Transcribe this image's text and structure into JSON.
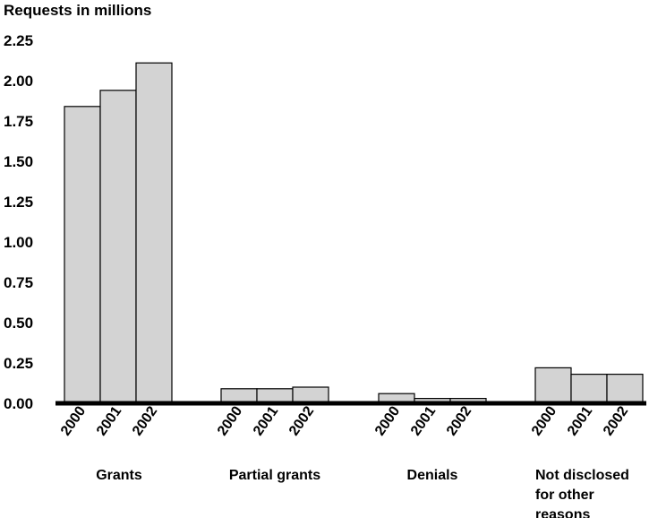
{
  "chart_data": {
    "type": "bar",
    "ylabel": "Requests in millions",
    "ylim": [
      0,
      2.25
    ],
    "yticks": [
      "0.00",
      "0.25",
      "0.50",
      "0.75",
      "1.00",
      "1.25",
      "1.50",
      "1.75",
      "2.00",
      "2.25"
    ],
    "grid": false,
    "legend": "none",
    "groups": [
      {
        "name": "Grants",
        "x": [
          "2000",
          "2001",
          "2002"
        ],
        "values": [
          1.84,
          1.94,
          2.11
        ]
      },
      {
        "name": "Partial grants",
        "x": [
          "2000",
          "2001",
          "2002"
        ],
        "values": [
          0.09,
          0.09,
          0.1
        ]
      },
      {
        "name": "Denials",
        "x": [
          "2000",
          "2001",
          "2002"
        ],
        "values": [
          0.06,
          0.03,
          0.03
        ]
      },
      {
        "name": "Not disclosed for other reasons",
        "x": [
          "2000",
          "2001",
          "2002"
        ],
        "values": [
          0.22,
          0.18,
          0.18
        ]
      }
    ],
    "bar_color": "#d3d3d3",
    "axis_color": "#000000"
  }
}
